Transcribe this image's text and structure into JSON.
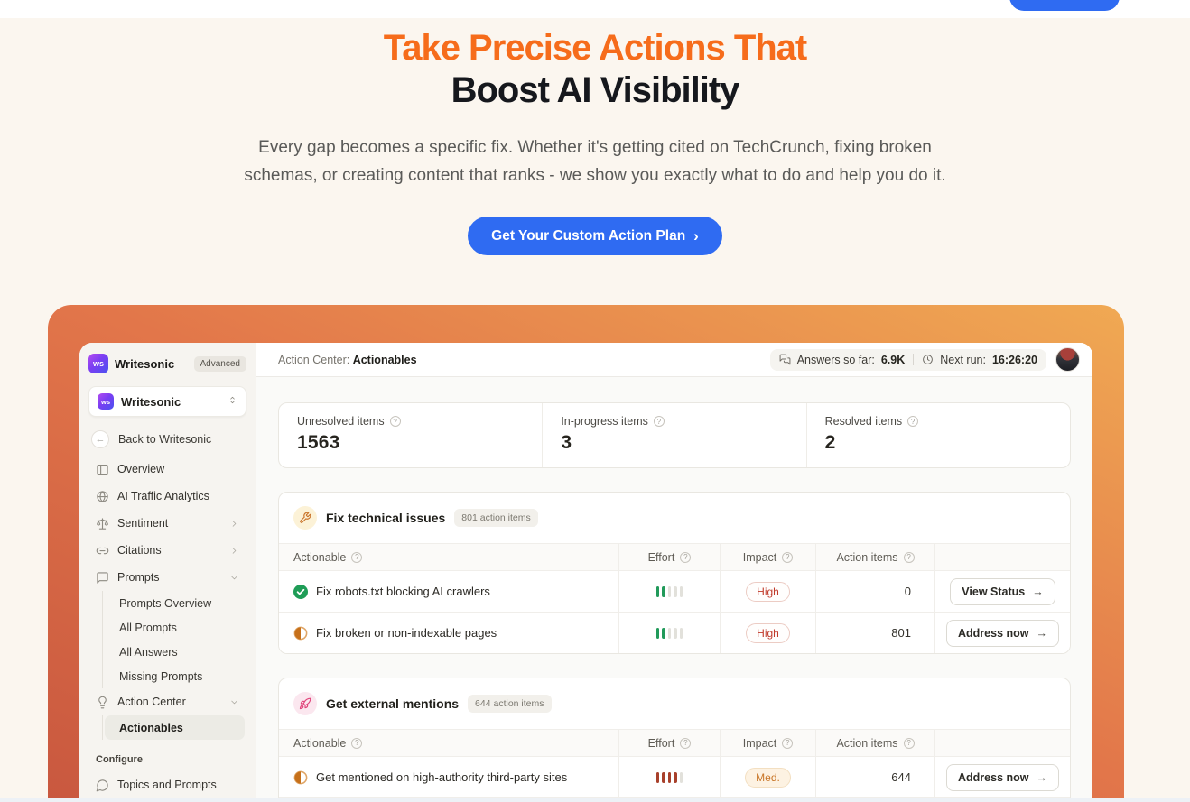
{
  "theme": {
    "accent-orange": "#f66c1b",
    "headline-dark": "#16181d",
    "cta-blue": "#2f6bf2",
    "page-bg": "#fbf6ef",
    "sidebar-bg": "#f6f4f0",
    "panel-bg": "#fafaf8",
    "green": "#219a5a",
    "impact-high": "#c03a2b",
    "impact-med": "#c9772a",
    "effort-red": "#a8402b"
  },
  "hero": {
    "title_line1": "Take Precise Actions That",
    "title_line2": "Boost AI Visibility",
    "subtitle_line1": "Every gap becomes a specific fix. Whether it's getting cited on TechCrunch, fixing broken",
    "subtitle_line2": "schemas, or creating content that ranks - we show you exactly what to do and help you do it.",
    "cta_label": "Get Your Custom Action Plan"
  },
  "dashboard": {
    "sidebar": {
      "logo_text": "ws",
      "brand": "Writesonic",
      "plan_badge": "Advanced",
      "workspace": "Writesonic",
      "back_label": "Back to Writesonic",
      "nav": [
        {
          "label": "Overview"
        },
        {
          "label": "AI Traffic Analytics"
        },
        {
          "label": "Sentiment"
        },
        {
          "label": "Citations"
        },
        {
          "label": "Prompts"
        },
        {
          "label": "Action Center"
        }
      ],
      "prompts_children": [
        "Prompts Overview",
        "All Prompts",
        "All Answers",
        "Missing Prompts"
      ],
      "action_center_children": [
        "Actionables"
      ],
      "configure_label": "Configure",
      "configure_items": [
        "Topics and Prompts"
      ]
    },
    "topbar": {
      "breadcrumb_prefix": "Action Center: ",
      "breadcrumb_current": "Actionables",
      "answers_label": "Answers so far:",
      "answers_value": "6.9K",
      "next_run_label": "Next run:",
      "next_run_value": "16:26:20"
    },
    "stats": [
      {
        "label": "Unresolved items",
        "value": "1563"
      },
      {
        "label": "In-progress items",
        "value": "3"
      },
      {
        "label": "Resolved items",
        "value": "2"
      }
    ],
    "table": {
      "headers": {
        "actionable": "Actionable",
        "effort": "Effort",
        "impact": "Impact",
        "action_items": "Action items"
      }
    },
    "sections": [
      {
        "title": "Fix technical issues",
        "badge": "801 action items",
        "rows": [
          {
            "status": "done",
            "title": "Fix robots.txt blocking AI crawlers",
            "effort": 2,
            "effort_color": "green",
            "impact": "High",
            "impact_level": "high",
            "count": "0",
            "button": "View Status"
          },
          {
            "status": "in-progress",
            "title": "Fix broken or non-indexable pages",
            "effort": 2,
            "effort_color": "green",
            "impact": "High",
            "impact_level": "high",
            "count": "801",
            "button": "Address now"
          }
        ]
      },
      {
        "title": "Get external mentions",
        "badge": "644 action items",
        "rows": [
          {
            "status": "in-progress",
            "title": "Get mentioned on high-authority third-party sites",
            "effort": 4,
            "effort_color": "red",
            "impact": "Med.",
            "impact_level": "medium",
            "count": "644",
            "button": "Address now"
          }
        ]
      }
    ]
  }
}
